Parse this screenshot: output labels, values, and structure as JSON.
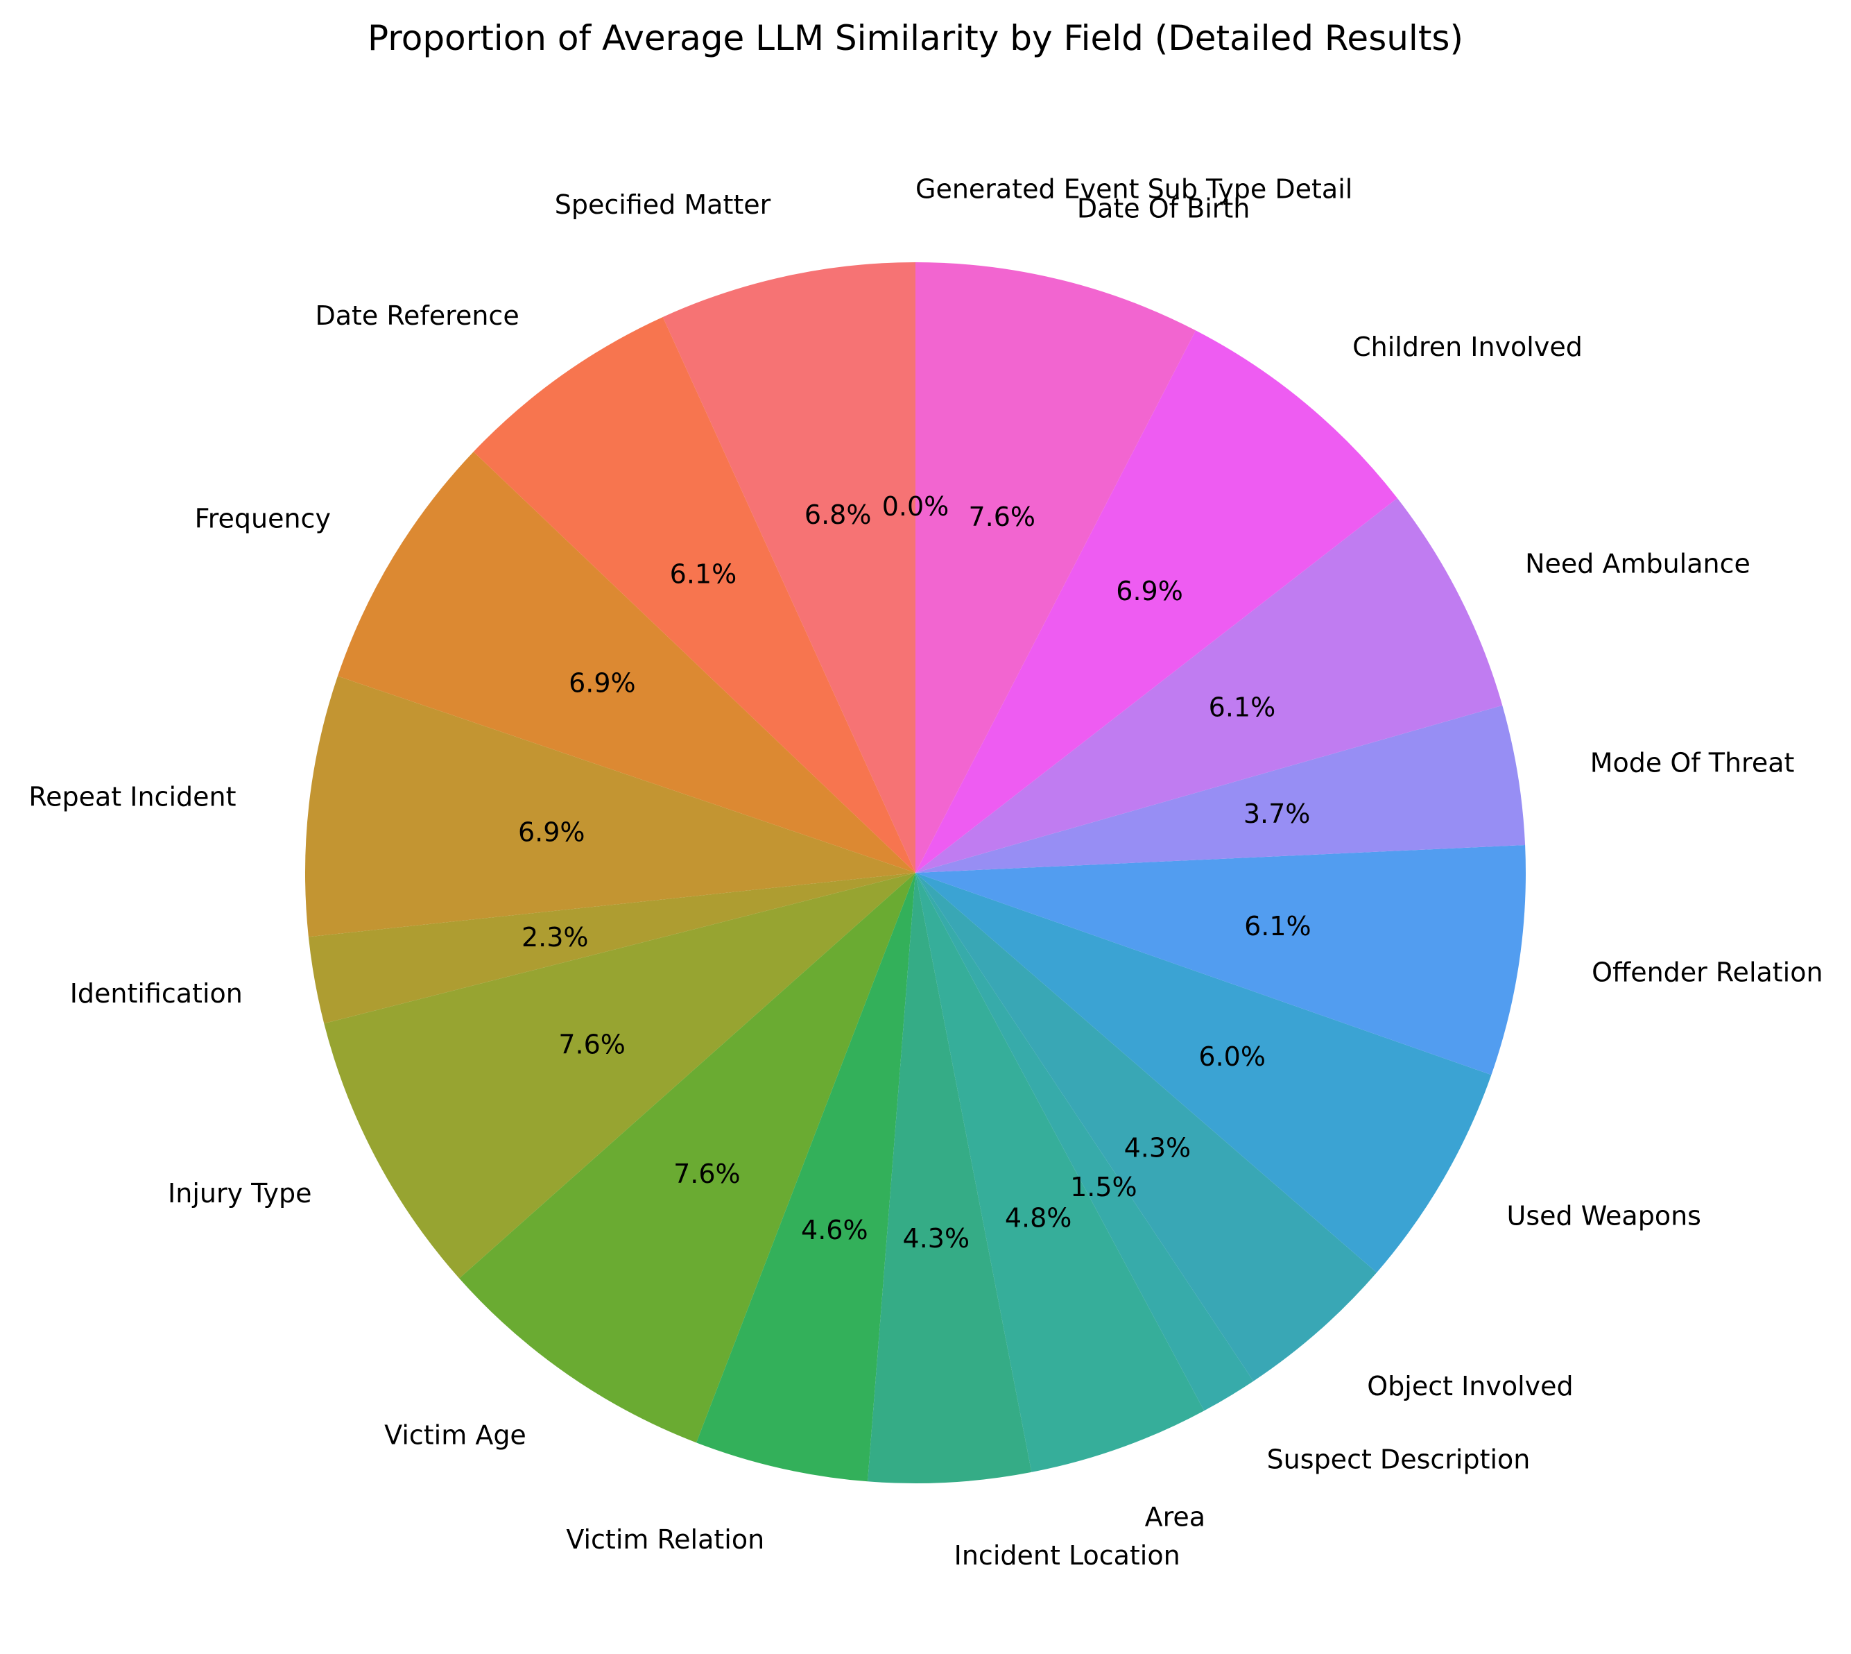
{
  "chart_data": {
    "type": "pie",
    "title": "Proportion of Average LLM Similarity by Field (Detailed Results)",
    "start_angle_deg": 90,
    "direction": "counterclockwise",
    "slices": [
      {
        "label": "Generated Event Sub Type Detail",
        "value": 0.0,
        "pct_label": "0.0%",
        "color": "#f77189"
      },
      {
        "label": "Specified Matter",
        "value": 6.8,
        "pct_label": "6.8%",
        "color": "#f67374"
      },
      {
        "label": "Date Reference",
        "value": 6.1,
        "pct_label": "6.1%",
        "color": "#f7754f"
      },
      {
        "label": "Frequency",
        "value": 6.9,
        "pct_label": "6.9%",
        "color": "#dc8932"
      },
      {
        "label": "Repeat Incident",
        "value": 6.9,
        "pct_label": "6.9%",
        "color": "#c39532"
      },
      {
        "label": "Identification",
        "value": 2.3,
        "pct_label": "2.3%",
        "color": "#ae9d31"
      },
      {
        "label": "Injury Type",
        "value": 7.6,
        "pct_label": "7.6%",
        "color": "#97a431"
      },
      {
        "label": "Victim Age",
        "value": 7.6,
        "pct_label": "7.6%",
        "color": "#6aab32"
      },
      {
        "label": "Victim Relation",
        "value": 4.6,
        "pct_label": "4.6%",
        "color": "#33b05a"
      },
      {
        "label": "Incident Location",
        "value": 4.3,
        "pct_label": "4.3%",
        "color": "#35ac86"
      },
      {
        "label": "Area",
        "value": 4.8,
        "pct_label": "4.8%",
        "color": "#36ae9a"
      },
      {
        "label": "Suspect Description",
        "value": 1.5,
        "pct_label": "1.5%",
        "color": "#37abaa"
      },
      {
        "label": "Object Involved",
        "value": 4.3,
        "pct_label": "4.3%",
        "color": "#39a7b5"
      },
      {
        "label": "Used Weapons",
        "value": 6.0,
        "pct_label": "6.0%",
        "color": "#3ba3d3"
      },
      {
        "label": "Offender Relation",
        "value": 6.1,
        "pct_label": "6.1%",
        "color": "#529df0"
      },
      {
        "label": "Mode Of Threat",
        "value": 3.7,
        "pct_label": "3.7%",
        "color": "#978ef4"
      },
      {
        "label": "Need Ambulance",
        "value": 6.1,
        "pct_label": "6.1%",
        "color": "#c07cf1"
      },
      {
        "label": "Children Involved",
        "value": 6.9,
        "pct_label": "6.9%",
        "color": "#ee5cf2"
      },
      {
        "label": "Date Of Birth",
        "value": 7.6,
        "pct_label": "7.6%",
        "color": "#f265d0"
      }
    ]
  }
}
